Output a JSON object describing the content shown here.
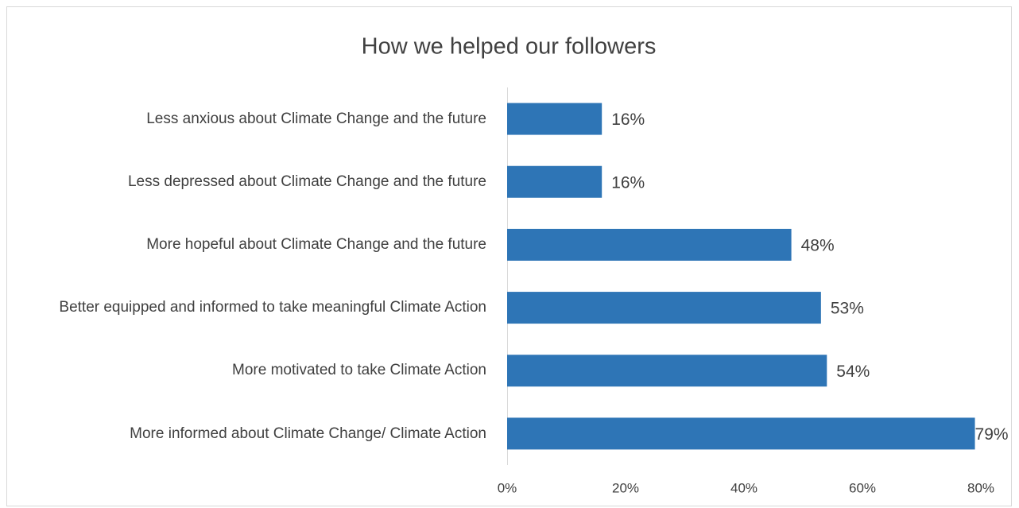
{
  "chart_data": {
    "type": "hbar",
    "title": "How we helped our followers",
    "categories": [
      "Less anxious about Climate Change and the future",
      "Less depressed about Climate Change and the future",
      "More hopeful about Climate Change and the future",
      "Better equipped and informed to take meaningful Climate Action",
      "More motivated to take Climate Action",
      "More informed about Climate Change/ Climate Action"
    ],
    "values": [
      16,
      16,
      48,
      53,
      54,
      79
    ],
    "value_labels": [
      "16%",
      "16%",
      "48%",
      "53%",
      "54%",
      "79%"
    ],
    "color": "#2e75b6",
    "xlim": [
      0,
      80
    ],
    "xticks": [
      {
        "value": 0,
        "label": "0%"
      },
      {
        "value": 20,
        "label": "20%"
      },
      {
        "value": 40,
        "label": "40%"
      },
      {
        "value": 60,
        "label": "60%"
      },
      {
        "value": 80,
        "label": "80%"
      }
    ],
    "grid": false
  }
}
